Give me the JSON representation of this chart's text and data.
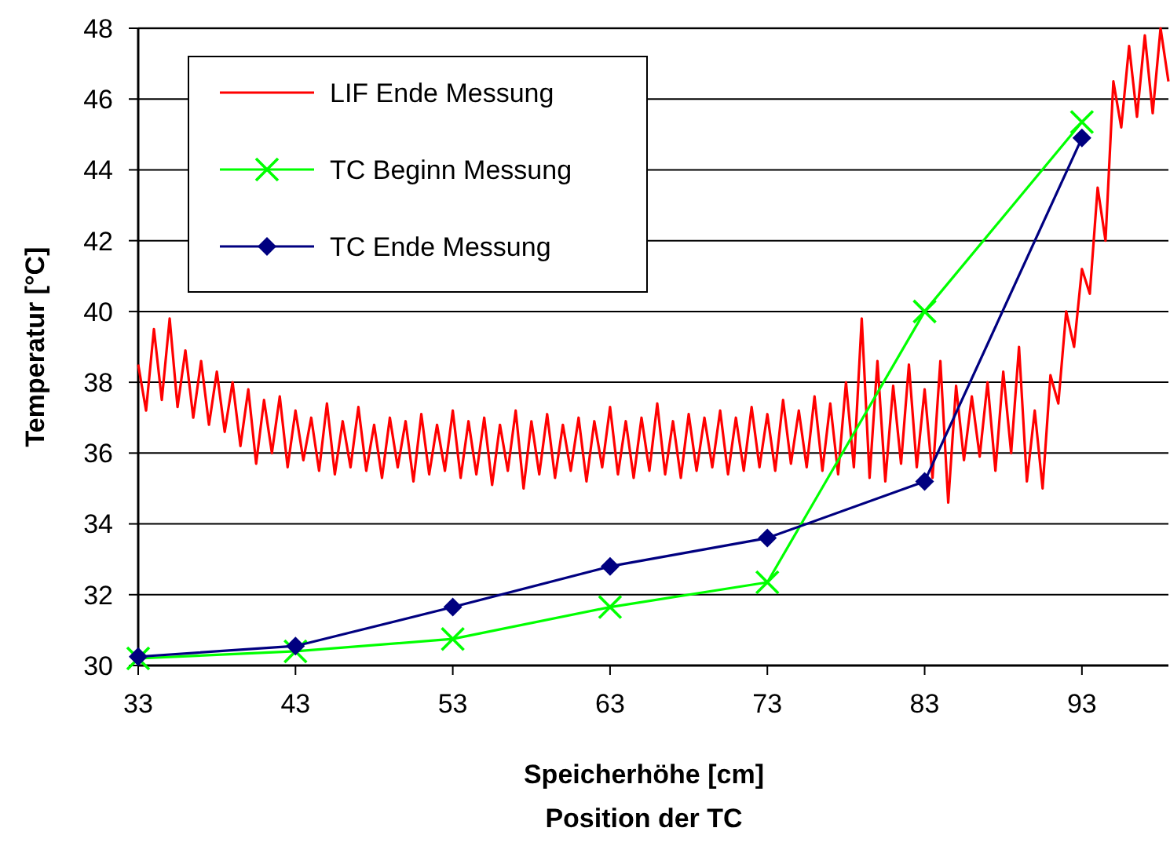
{
  "chart_data": {
    "type": "line",
    "xlabel": "Speicherhöhe [cm]\nPosition der TC",
    "ylabel": "Temperatur [°C]",
    "xlim": [
      33,
      98.5
    ],
    "xticks": [
      33,
      43,
      53,
      63,
      73,
      83,
      93
    ],
    "ylim": [
      30,
      48
    ],
    "yticks": [
      30,
      32,
      34,
      36,
      38,
      40,
      42,
      44,
      46,
      48
    ],
    "grid": "y",
    "legend": "top left",
    "series": [
      {
        "name": "LIF Ende Messung",
        "color": "#ff0000",
        "marker": "none",
        "x": [
          33,
          33.5,
          34,
          34.5,
          35,
          35.5,
          36,
          36.5,
          37,
          37.5,
          38,
          38.5,
          39,
          39.5,
          40,
          40.5,
          41,
          41.5,
          42,
          42.5,
          43,
          43.5,
          44,
          44.5,
          45,
          45.5,
          46,
          46.5,
          47,
          47.5,
          48,
          48.5,
          49,
          49.5,
          50,
          50.5,
          51,
          51.5,
          52,
          52.5,
          53,
          53.5,
          54,
          54.5,
          55,
          55.5,
          56,
          56.5,
          57,
          57.5,
          58,
          58.5,
          59,
          59.5,
          60,
          60.5,
          61,
          61.5,
          62,
          62.5,
          63,
          63.5,
          64,
          64.5,
          65,
          65.5,
          66,
          66.5,
          67,
          67.5,
          68,
          68.5,
          69,
          69.5,
          70,
          70.5,
          71,
          71.5,
          72,
          72.5,
          73,
          73.5,
          74,
          74.5,
          75,
          75.5,
          76,
          76.5,
          77,
          77.5,
          78,
          78.5,
          79,
          79.5,
          80,
          80.5,
          81,
          81.5,
          82,
          82.5,
          83,
          83.5,
          84,
          84.5,
          85,
          85.5,
          86,
          86.5,
          87,
          87.5,
          88,
          88.5,
          89,
          89.5,
          90,
          90.5,
          91,
          91.5,
          92,
          92.5,
          93,
          93.5,
          94,
          94.5,
          95,
          95.5,
          96,
          96.5,
          97,
          97.5,
          98,
          98.5
        ],
        "values": [
          38.5,
          37.2,
          39.5,
          37.5,
          39.8,
          37.3,
          38.9,
          37.0,
          38.6,
          36.8,
          38.3,
          36.6,
          38.0,
          36.2,
          37.8,
          35.7,
          37.5,
          36.0,
          37.6,
          35.6,
          37.2,
          35.8,
          37.0,
          35.5,
          37.4,
          35.4,
          36.9,
          35.6,
          37.3,
          35.5,
          36.8,
          35.3,
          37.0,
          35.6,
          36.9,
          35.2,
          37.1,
          35.4,
          36.8,
          35.5,
          37.2,
          35.3,
          36.9,
          35.4,
          37.0,
          35.1,
          36.8,
          35.5,
          37.2,
          35.0,
          36.9,
          35.4,
          37.1,
          35.3,
          36.8,
          35.5,
          37.0,
          35.2,
          36.9,
          35.6,
          37.3,
          35.4,
          36.9,
          35.3,
          37.0,
          35.5,
          37.4,
          35.4,
          36.9,
          35.3,
          37.1,
          35.5,
          37.0,
          35.6,
          37.2,
          35.4,
          37.0,
          35.5,
          37.3,
          35.6,
          37.1,
          35.5,
          37.5,
          35.7,
          37.2,
          35.6,
          37.6,
          35.5,
          37.4,
          35.4,
          38.0,
          35.6,
          39.8,
          35.3,
          38.6,
          35.2,
          37.9,
          35.7,
          38.5,
          35.6,
          37.8,
          35.3,
          38.6,
          34.6,
          37.9,
          35.8,
          37.6,
          35.9,
          38.0,
          35.5,
          38.3,
          36.0,
          39.0,
          35.2,
          37.2,
          35.0,
          38.2,
          37.4,
          40.0,
          39.0,
          41.2,
          40.5,
          43.5,
          42.0,
          46.5,
          45.2,
          47.5,
          45.5,
          47.8,
          45.6,
          48.0,
          46.5
        ]
      },
      {
        "name": "TC Beginn Messung",
        "color": "#00ff00",
        "marker": "cross",
        "x": [
          33,
          43,
          53,
          63,
          73,
          83,
          93
        ],
        "values": [
          30.2,
          30.4,
          30.75,
          31.65,
          32.35,
          40,
          45.35
        ]
      },
      {
        "name": "TC Ende Messung",
        "color": "#000080",
        "marker": "diamond",
        "x": [
          33,
          43,
          53,
          63,
          73,
          83,
          93
        ],
        "values": [
          30.25,
          30.55,
          31.65,
          32.8,
          33.6,
          35.2,
          44.9
        ]
      }
    ]
  }
}
